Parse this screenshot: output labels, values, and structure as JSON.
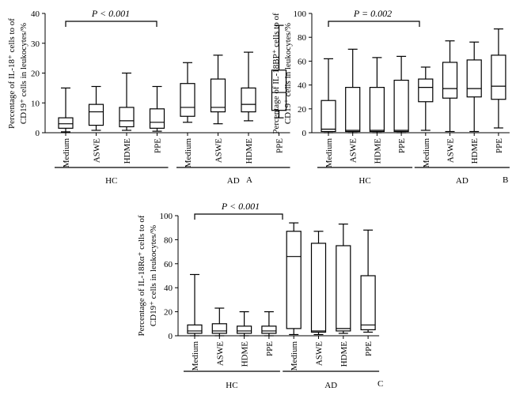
{
  "chart_data": [
    {
      "id": "A",
      "type": "boxplot",
      "panel_label": "A",
      "ylabel_line1": "Percentage of IL-18⁺ cells to of",
      "ylabel_line2": "CD19⁺ cells in leukocytes/%",
      "ylim": [
        0,
        40
      ],
      "yticks": [
        0,
        10,
        20,
        30,
        40
      ],
      "significance": "P < 0.001",
      "categories": [
        "Medium",
        "ASWE",
        "HDME",
        "PPE",
        "Medium",
        "ASWE",
        "HDME",
        "PPE"
      ],
      "groups": [
        {
          "name": "HC",
          "start": 0,
          "end": 3
        },
        {
          "name": "AD",
          "start": 4,
          "end": 7
        }
      ],
      "boxes": [
        {
          "min": 0.3,
          "q1": 1.5,
          "median": 3,
          "q3": 5,
          "max": 15
        },
        {
          "min": 0.8,
          "q1": 2.5,
          "median": 7,
          "q3": 9.5,
          "max": 15.5
        },
        {
          "min": 0.8,
          "q1": 2,
          "median": 4,
          "q3": 8.5,
          "max": 20
        },
        {
          "min": 0.5,
          "q1": 1.5,
          "median": 3.5,
          "q3": 8,
          "max": 15.5
        },
        {
          "min": 3.5,
          "q1": 5.5,
          "median": 8.5,
          "q3": 16.5,
          "max": 23.5
        },
        {
          "min": 3,
          "q1": 7,
          "median": 8.5,
          "q3": 18,
          "max": 26
        },
        {
          "min": 4,
          "q1": 7,
          "median": 9.5,
          "q3": 15,
          "max": 27
        },
        {
          "min": 5,
          "q1": 7.5,
          "median": 13.5,
          "q3": 21,
          "max": 36
        }
      ]
    },
    {
      "id": "B",
      "type": "boxplot",
      "panel_label": "B",
      "ylabel_line1": "Percentage of IL-18BP⁺ cells to of",
      "ylabel_line2": "CD19⁺ cells in leukocytes/%",
      "ylim": [
        0,
        100
      ],
      "yticks": [
        0,
        20,
        40,
        60,
        80,
        100
      ],
      "significance": "P = 0.002",
      "categories": [
        "Medium",
        "ASWE",
        "HDME",
        "PPE",
        "Medium",
        "ASWE",
        "HDME",
        "PPE"
      ],
      "groups": [
        {
          "name": "HC",
          "start": 0,
          "end": 3
        },
        {
          "name": "AD",
          "start": 4,
          "end": 7
        }
      ],
      "boxes": [
        {
          "min": 0,
          "q1": 1,
          "median": 3,
          "q3": 27,
          "max": 62
        },
        {
          "min": 0,
          "q1": 1,
          "median": 2,
          "q3": 38,
          "max": 70
        },
        {
          "min": 0,
          "q1": 1,
          "median": 2,
          "q3": 38,
          "max": 63
        },
        {
          "min": 0,
          "q1": 1,
          "median": 2,
          "q3": 44,
          "max": 64
        },
        {
          "min": 2,
          "q1": 26,
          "median": 38,
          "q3": 45,
          "max": 55
        },
        {
          "min": 1,
          "q1": 29,
          "median": 37,
          "q3": 59,
          "max": 77
        },
        {
          "min": 1,
          "q1": 30,
          "median": 37,
          "q3": 61,
          "max": 76
        },
        {
          "min": 4,
          "q1": 28,
          "median": 39,
          "q3": 65,
          "max": 87
        }
      ]
    },
    {
      "id": "C",
      "type": "boxplot",
      "panel_label": "C",
      "ylabel_line1": "Percentage of IL-18Rα⁺ cells to of",
      "ylabel_line2": "CD19⁺ cells in leukocytes/%",
      "ylim": [
        0,
        100
      ],
      "yticks": [
        0,
        20,
        40,
        60,
        80,
        100
      ],
      "significance": "P < 0.001",
      "categories": [
        "Medium",
        "ASWE",
        "HDME",
        "PPE",
        "Medium",
        "ASWE",
        "HDME",
        "PPE"
      ],
      "groups": [
        {
          "name": "HC",
          "start": 0,
          "end": 3
        },
        {
          "name": "AD",
          "start": 4,
          "end": 7
        }
      ],
      "boxes": [
        {
          "min": 0,
          "q1": 2,
          "median": 4,
          "q3": 9,
          "max": 51
        },
        {
          "min": 0,
          "q1": 2,
          "median": 4,
          "q3": 10,
          "max": 23
        },
        {
          "min": 0,
          "q1": 2,
          "median": 4,
          "q3": 8,
          "max": 20
        },
        {
          "min": 0,
          "q1": 2,
          "median": 4,
          "q3": 8,
          "max": 20
        },
        {
          "min": 1,
          "q1": 6,
          "median": 66,
          "q3": 87,
          "max": 94
        },
        {
          "min": 1,
          "q1": 3,
          "median": 4,
          "q3": 77,
          "max": 87
        },
        {
          "min": 2,
          "q1": 4,
          "median": 6,
          "q3": 75,
          "max": 93
        },
        {
          "min": 3,
          "q1": 5,
          "median": 9,
          "q3": 50,
          "max": 88
        }
      ]
    }
  ]
}
